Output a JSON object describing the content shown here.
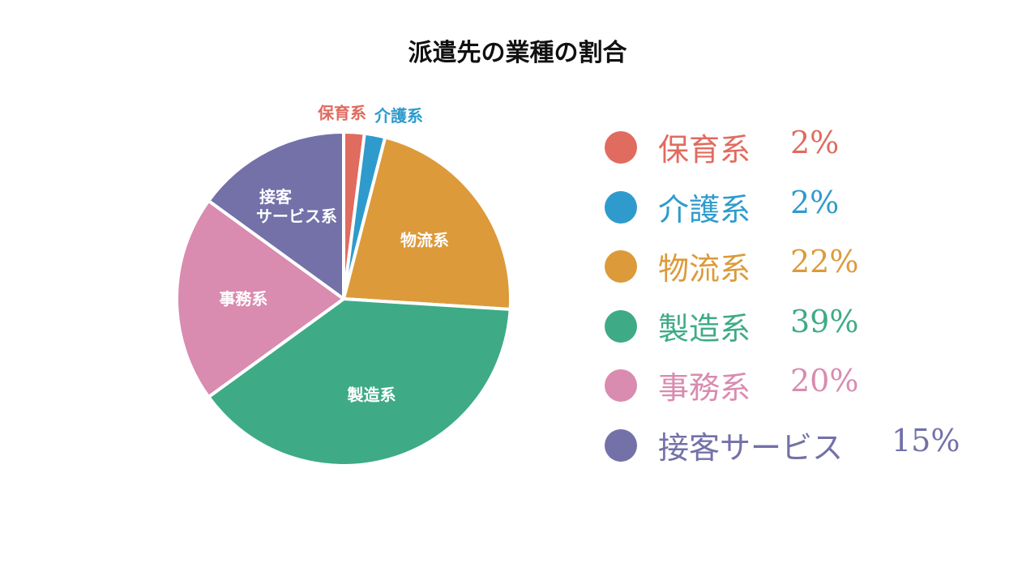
{
  "chart_data": {
    "type": "pie",
    "title": "派遣先の業種の割合",
    "slices": [
      {
        "label": "保育系",
        "slice_label": "保育系",
        "legend_label": "保育系",
        "value": 2,
        "value_label": "2%",
        "color": "#e06b5f",
        "label_outside": true
      },
      {
        "label": "介護系",
        "slice_label": "介護系",
        "legend_label": "介護系",
        "value": 2,
        "value_label": "2%",
        "color": "#2f9bcc",
        "label_outside": true
      },
      {
        "label": "物流系",
        "slice_label": "物流系",
        "legend_label": "物流系",
        "value": 22,
        "value_label": "22%",
        "color": "#dc9a3b",
        "label_outside": false
      },
      {
        "label": "製造系",
        "slice_label": "製造系",
        "legend_label": "製造系",
        "value": 39,
        "value_label": "39%",
        "color": "#3eab86",
        "label_outside": false
      },
      {
        "label": "事務系",
        "slice_label": "事務系",
        "legend_label": "事務系",
        "value": 20,
        "value_label": "20%",
        "color": "#d98bb0",
        "label_outside": false
      },
      {
        "label": "接客サービス系",
        "slice_label": [
          "接客",
          "サービス系"
        ],
        "legend_label": "接客サービス",
        "value": 15,
        "value_label": "15%",
        "color": "#7371a8",
        "label_outside": false
      }
    ],
    "legend_position": "right"
  }
}
